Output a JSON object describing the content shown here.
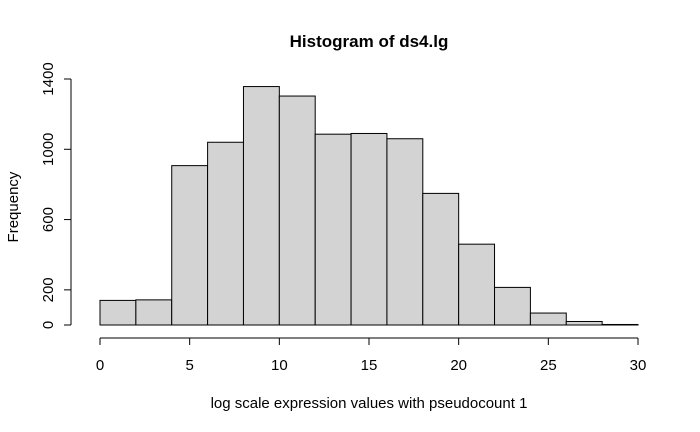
{
  "chart_data": {
    "type": "bar",
    "title": "Histogram of ds4.lg",
    "xlabel": "log scale expression values with pseudocount 1",
    "ylabel": "Frequency",
    "bins": [
      {
        "from": 0,
        "to": 2,
        "count": 140
      },
      {
        "from": 2,
        "to": 4,
        "count": 143
      },
      {
        "from": 4,
        "to": 6,
        "count": 907
      },
      {
        "from": 6,
        "to": 8,
        "count": 1040
      },
      {
        "from": 8,
        "to": 10,
        "count": 1357
      },
      {
        "from": 10,
        "to": 12,
        "count": 1303
      },
      {
        "from": 12,
        "to": 14,
        "count": 1086
      },
      {
        "from": 14,
        "to": 16,
        "count": 1090
      },
      {
        "from": 16,
        "to": 18,
        "count": 1060
      },
      {
        "from": 18,
        "to": 20,
        "count": 749
      },
      {
        "from": 20,
        "to": 22,
        "count": 460
      },
      {
        "from": 22,
        "to": 24,
        "count": 214
      },
      {
        "from": 24,
        "to": 26,
        "count": 68
      },
      {
        "from": 26,
        "to": 28,
        "count": 20
      },
      {
        "from": 28,
        "to": 30,
        "count": 3
      }
    ],
    "xticks": [
      0,
      5,
      10,
      15,
      20,
      25,
      30
    ],
    "yticks": [
      0,
      200,
      600,
      1000,
      1400
    ],
    "xlim": [
      0,
      30
    ],
    "ylim": [
      0,
      1400
    ],
    "bar_fill": "#d3d3d3",
    "bar_stroke": "#000000",
    "grid": false,
    "legend": "none"
  }
}
